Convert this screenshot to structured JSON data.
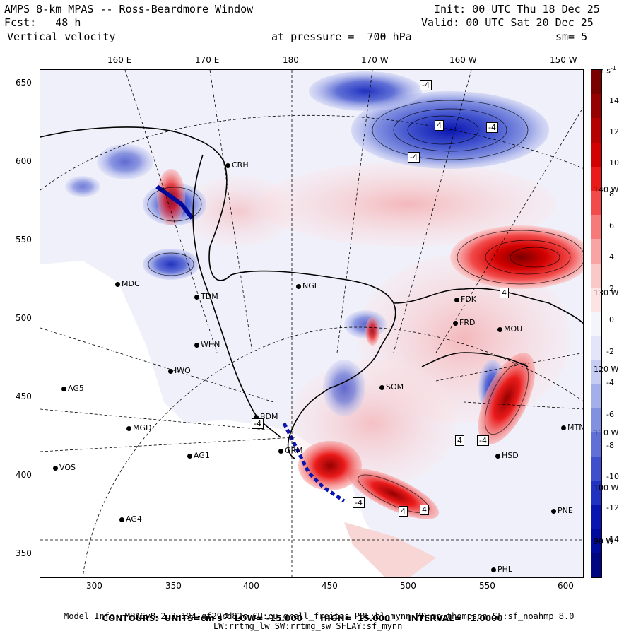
{
  "header": {
    "line1_left": "AMPS 8-km MPAS -- Ross-Beardmore Window",
    "line1_right": "Init: 00 UTC Thu 18 Dec 25",
    "line2_left": "Fcst:   48 h",
    "line2_right": "Valid: 00 UTC Sat 20 Dec 25",
    "line3_left": "Vertical velocity",
    "line3_mid": "at pressure =  700 hPa",
    "line3_right": "sm= 5"
  },
  "top_ticks": [
    "160 E",
    "170 E",
    "180",
    "170 W",
    "160 W",
    "150 W"
  ],
  "left_ticks": [
    "650",
    "600",
    "550",
    "500",
    "450",
    "400",
    "350"
  ],
  "bottom_ticks": [
    "300",
    "350",
    "400",
    "450",
    "500",
    "550",
    "600"
  ],
  "colorbar": {
    "units": "cm s",
    "units_sup": "-1",
    "labels": [
      "14",
      "12",
      "10",
      "8",
      "6",
      "4",
      "2",
      "0",
      "-2",
      "-4",
      "-6",
      "-8",
      "-10",
      "-12",
      "-14"
    ],
    "colors": [
      "#7a0000",
      "#960000",
      "#b40000",
      "#d20000",
      "#ea1a1a",
      "#f24a4a",
      "#f67a7a",
      "#f8a4a4",
      "#fbc8c8",
      "#fde4e4",
      "#f4f4fb",
      "#e2e6f8",
      "#c6ccf2",
      "#a4aeea",
      "#8290e0",
      "#6070d6",
      "#3e50cc",
      "#2232c0",
      "#0a14b0",
      "#000a9c",
      "#000680"
    ]
  },
  "side_longitudes": [
    "140 W",
    "130 W",
    "120 W",
    "110 W",
    "100 W",
    "90 W"
  ],
  "stations": [
    {
      "label": "CRH"
    },
    {
      "label": "NGL"
    },
    {
      "label": "MDC"
    },
    {
      "label": "TDM"
    },
    {
      "label": "WHN"
    },
    {
      "label": "IWO"
    },
    {
      "label": "AG5"
    },
    {
      "label": "MGD"
    },
    {
      "label": "AG1"
    },
    {
      "label": "VOS"
    },
    {
      "label": "AG4"
    },
    {
      "label": "BDM"
    },
    {
      "label": "GRM"
    },
    {
      "label": "SOM"
    },
    {
      "label": "FDK"
    },
    {
      "label": "FRD"
    },
    {
      "label": "MOU"
    },
    {
      "label": "HSD"
    },
    {
      "label": "MTN"
    },
    {
      "label": "PNE"
    },
    {
      "label": "PHL"
    }
  ],
  "contour_labels": [
    "-4",
    "-4",
    "-4",
    "-4",
    "4",
    "-4",
    "4",
    "4",
    "4",
    "-4",
    "4"
  ],
  "footer": {
    "contours_prefix": "CONTOURS:  UNITS=cm s",
    "contours_sup": "-1",
    "contours_rest": "  LOW= -15.000      HIGH=  15.000      INTERVAL=   1.0000",
    "model_info": "Model Info: MPASv8.2.3-194-gf29cd82c CU:cu_grell_freitas PBL:bl_mynn MP:mp_thompson SF:sf_noahmp 8.0",
    "model_info2": "LW:rrtmg_lw SW:rrtmg_sw SFLAY:sf_mynn"
  }
}
